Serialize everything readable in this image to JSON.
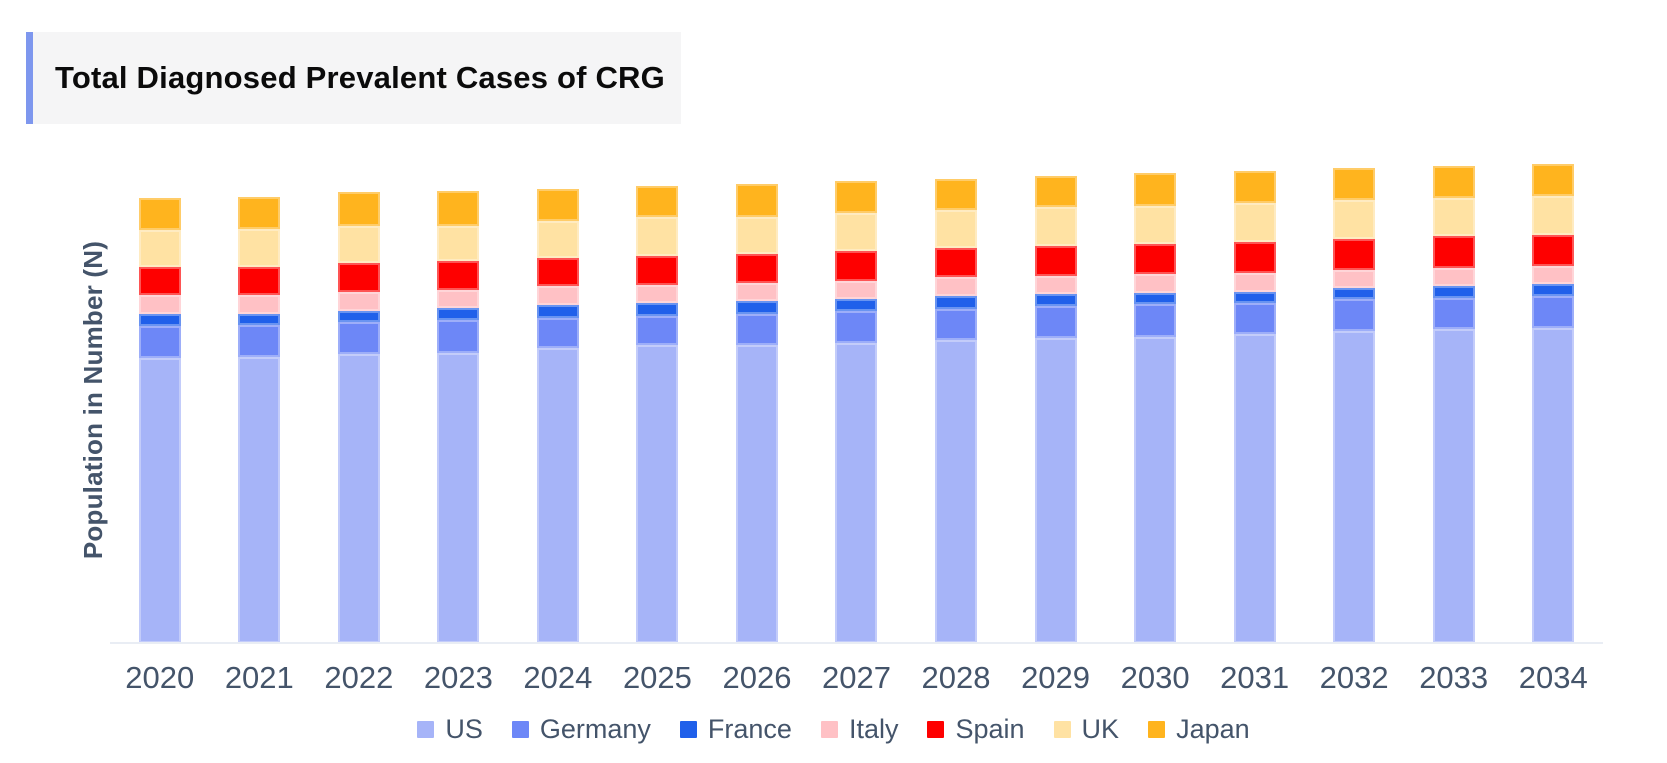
{
  "title": "Total Diagnosed Prevalent Cases of CRG",
  "y_axis_label": "Population in Number (N)",
  "colors": {
    "title_accent": "#7E97EE",
    "title_background": "#F5F5F6",
    "axis_text": "#44546A",
    "axis_line": "#E9EDF4"
  },
  "chart_data": {
    "type": "bar",
    "stacked": true,
    "title": "Total Diagnosed Prevalent Cases of CRG",
    "xlabel": "",
    "ylabel": "Population in Number (N)",
    "categories": [
      "2020",
      "2021",
      "2022",
      "2023",
      "2024",
      "2025",
      "2026",
      "2027",
      "2028",
      "2029",
      "2030",
      "2031",
      "2032",
      "2033",
      "2034"
    ],
    "series": [
      {
        "name": "US",
        "color": "#A6B4F8",
        "values": [
          285,
          286,
          289,
          290,
          295,
          298,
          298,
          300,
          303,
          305,
          306,
          309,
          312,
          314,
          315
        ]
      },
      {
        "name": "Germany",
        "color": "#6D87F7",
        "values": [
          32,
          32,
          32,
          33,
          30,
          29,
          31,
          32,
          31,
          32,
          33,
          31,
          32,
          31,
          32
        ]
      },
      {
        "name": "France",
        "color": "#2060EA",
        "values": [
          12,
          11,
          11,
          12,
          13,
          13,
          13,
          12,
          13,
          12,
          11,
          11,
          11,
          12,
          12
        ]
      },
      {
        "name": "Italy",
        "color": "#FFC1C5",
        "values": [
          19,
          19,
          19,
          18,
          19,
          18,
          18,
          18,
          19,
          18,
          19,
          19,
          18,
          18,
          18
        ]
      },
      {
        "name": "Spain",
        "color": "#FE0000",
        "values": [
          28,
          28,
          29,
          29,
          28,
          29,
          29,
          30,
          29,
          30,
          30,
          31,
          31,
          32,
          31
        ]
      },
      {
        "name": "UK",
        "color": "#FFE2A3",
        "values": [
          37,
          38,
          37,
          35,
          37,
          39,
          37,
          38,
          38,
          39,
          38,
          39,
          39,
          38,
          39
        ]
      },
      {
        "name": "Japan",
        "color": "#FFB41E",
        "values": [
          32,
          32,
          34,
          35,
          32,
          31,
          33,
          32,
          31,
          31,
          33,
          32,
          32,
          32,
          32
        ]
      }
    ],
    "value_units": "relative stacked height (no numeric y-axis scale shown in source)",
    "ylim": [
      0,
      500
    ],
    "grid": false,
    "legend_position": "bottom"
  }
}
